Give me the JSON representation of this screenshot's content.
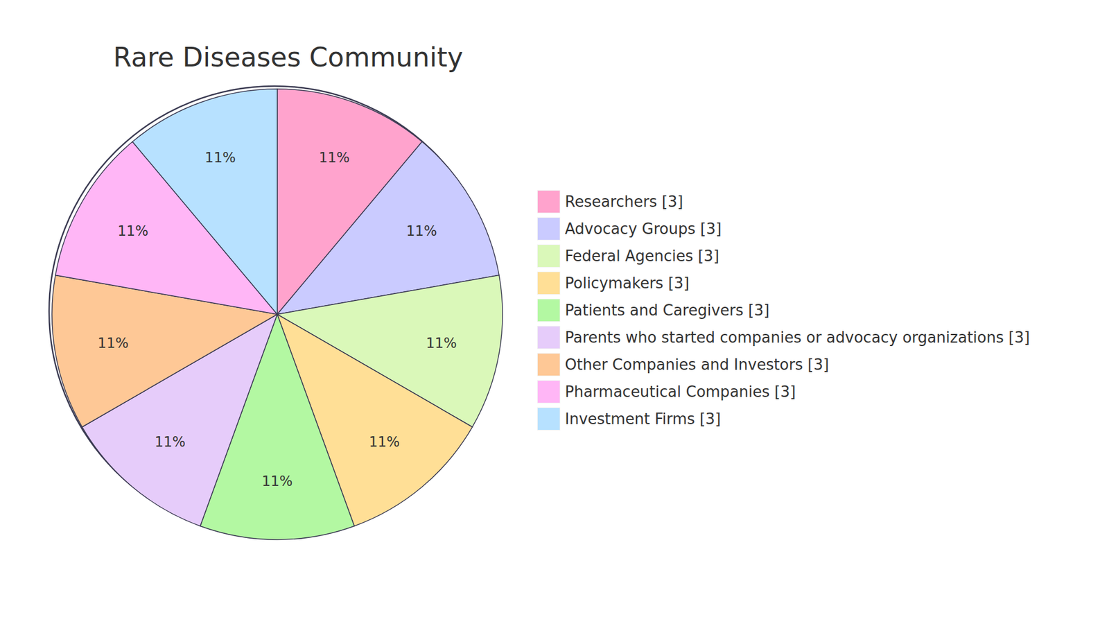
{
  "chart_data": {
    "type": "pie",
    "title": "Rare Diseases Community",
    "categories": [
      "Researchers [3]",
      "Advocacy Groups [3]",
      "Federal Agencies [3]",
      "Policymakers [3]",
      "Patients and Caregivers [3]",
      "Parents who started companies or advocacy organizations [3]",
      "Other Companies and Investors [3]",
      "Pharmaceutical Companies [3]",
      "Investment Firms [3]"
    ],
    "values": [
      3,
      3,
      3,
      3,
      3,
      3,
      3,
      3,
      3
    ],
    "percent_labels": [
      "11%",
      "11%",
      "11%",
      "11%",
      "11%",
      "11%",
      "11%",
      "11%",
      "11%"
    ],
    "colors": [
      "#ffa3cd",
      "#cacbff",
      "#daf8b9",
      "#ffdf96",
      "#b3f8a2",
      "#e6ccfa",
      "#fec896",
      "#ffb6f6",
      "#b7e1ff"
    ],
    "legend": "right"
  }
}
